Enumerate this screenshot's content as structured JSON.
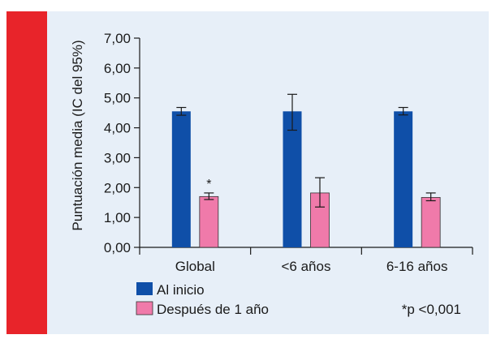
{
  "chart_data": {
    "type": "bar",
    "categories": [
      "Global",
      "<6 años",
      "6-16 años"
    ],
    "series": [
      {
        "name": "Al inicio",
        "color": "#0f4fa8",
        "values": [
          4.55,
          4.55,
          4.55
        ],
        "ci_low": [
          4.42,
          3.92,
          4.43
        ],
        "ci_high": [
          4.68,
          5.12,
          4.68
        ]
      },
      {
        "name": "Después de 1 año",
        "color": "#f07aaa",
        "values": [
          1.7,
          1.82,
          1.67
        ],
        "ci_low": [
          1.6,
          1.35,
          1.56
        ],
        "ci_high": [
          1.82,
          2.33,
          1.82
        ]
      }
    ],
    "ylabel": "Puntuación media (IC del 95%)",
    "ylim": [
      0,
      7
    ],
    "yticks": [
      "0,00",
      "1,00",
      "2,00",
      "3,00",
      "4,00",
      "5,00",
      "6,00",
      "7,00"
    ],
    "grid": false,
    "legend_position": "bottom-left",
    "annotations": {
      "significance_marker": "*",
      "significance_category": "Global",
      "significance_note": "*p <0,001"
    }
  },
  "style": {
    "accent_color": "#e8242a",
    "panel_background": "#e7eff8"
  }
}
